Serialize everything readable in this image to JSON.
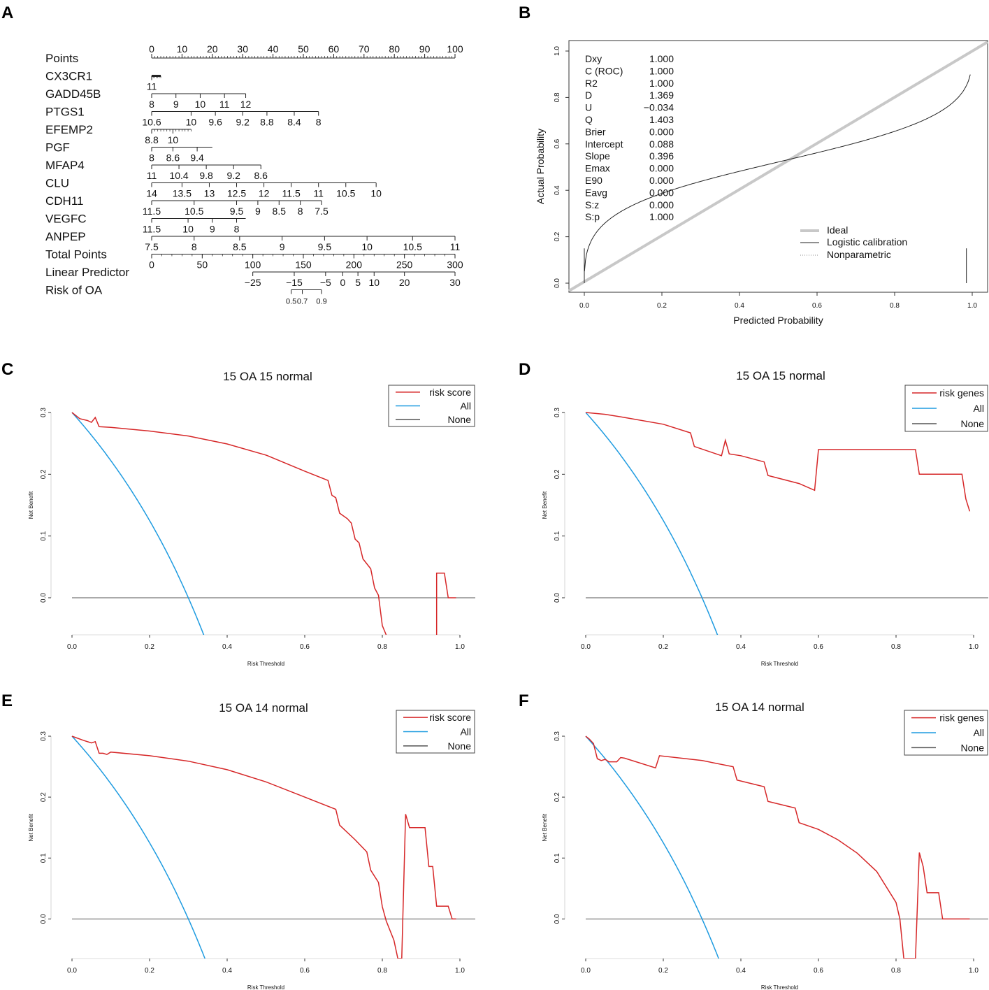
{
  "panel_labels": [
    "A",
    "B",
    "C",
    "D",
    "E",
    "F"
  ],
  "colors": {
    "model": "#d62728",
    "all": "#1e9be0",
    "none": "#555555",
    "ideal": "#c8c8c8",
    "axis": "#333333"
  },
  "chart_data": [
    {
      "type": "nomogram",
      "panel": "A",
      "rows": [
        {
          "label": "Points",
          "values": [
            0,
            100
          ],
          "ticks": [
            [
              "0",
              0
            ],
            [
              "10",
              10
            ],
            [
              "20",
              20
            ],
            [
              "30",
              30
            ],
            [
              "40",
              40
            ],
            [
              "50",
              50
            ],
            [
              "60",
              60
            ],
            [
              "70",
              70
            ],
            [
              "80",
              80
            ],
            [
              "90",
              90
            ],
            [
              "100",
              100
            ]
          ],
          "minor": 1
        },
        {
          "label": "CX3CR1",
          "values": [
            0,
            3
          ],
          "ticks": [
            [
              "11",
              0
            ]
          ],
          "minor": 0.5,
          "thick": true
        },
        {
          "label": "GADD45B",
          "values": [
            0,
            31
          ],
          "ticks": [
            [
              "8",
              0
            ],
            [
              "9",
              8
            ],
            [
              "10",
              16
            ],
            [
              "11",
              24
            ],
            [
              "12",
              31
            ]
          ]
        },
        {
          "label": "PTGS1",
          "values": [
            0,
            55
          ],
          "ticks": [
            [
              "10.6",
              0
            ],
            [
              "10",
              13
            ],
            [
              "9.6",
              21
            ],
            [
              "9.2",
              30
            ],
            [
              "8.8",
              38
            ],
            [
              "8.4",
              47
            ],
            [
              "8",
              55
            ]
          ]
        },
        {
          "label": "EFEMP2",
          "values": [
            0,
            13
          ],
          "ticks": [
            [
              "8.8",
              0
            ],
            [
              "10",
              7
            ]
          ],
          "minor": 1
        },
        {
          "label": "PGF",
          "values": [
            0,
            20
          ],
          "ticks": [
            [
              "8",
              0
            ],
            [
              "8.6",
              7
            ],
            [
              "9.4",
              15
            ]
          ]
        },
        {
          "label": "MFAP4",
          "values": [
            0,
            36
          ],
          "ticks": [
            [
              "11",
              0
            ],
            [
              "10.4",
              9
            ],
            [
              "9.8",
              18
            ],
            [
              "9.2",
              27
            ],
            [
              "8.6",
              36
            ]
          ]
        },
        {
          "label": "CLU",
          "values": [
            0,
            74
          ],
          "ticks": [
            [
              "14",
              0
            ],
            [
              "13.5",
              10
            ],
            [
              "13",
              19
            ],
            [
              "12.5",
              28
            ],
            [
              "12",
              37
            ],
            [
              "11.5",
              46
            ],
            [
              "11",
              55
            ],
            [
              "10.5",
              64
            ],
            [
              "10",
              74
            ]
          ]
        },
        {
          "label": "CDH11",
          "values": [
            0,
            56
          ],
          "ticks": [
            [
              "11.5",
              0
            ],
            [
              "10.5",
              14
            ],
            [
              "9.5",
              28
            ],
            [
              "9",
              35
            ],
            [
              "8.5",
              42
            ],
            [
              "8",
              49
            ],
            [
              "7.5",
              56
            ]
          ]
        },
        {
          "label": "VEGFC",
          "values": [
            0,
            31
          ],
          "ticks": [
            [
              "11.5",
              0
            ],
            [
              "10",
              12
            ],
            [
              "9",
              20
            ],
            [
              "8",
              28
            ]
          ]
        },
        {
          "label": "ANPEP",
          "values": [
            0,
            100
          ],
          "ticks": [
            [
              "7.5",
              0
            ],
            [
              "8",
              14
            ],
            [
              "8.5",
              29
            ],
            [
              "9",
              43
            ],
            [
              "9.5",
              57
            ],
            [
              "10",
              71
            ],
            [
              "10.5",
              86
            ],
            [
              "11",
              100
            ]
          ]
        },
        {
          "label": "Total Points",
          "values": [
            0,
            300
          ],
          "ticks": [
            [
              "0",
              0
            ],
            [
              "50",
              50
            ],
            [
              "100",
              100
            ],
            [
              "150",
              150
            ],
            [
              "200",
              200
            ],
            [
              "250",
              250
            ],
            [
              "300",
              300
            ]
          ],
          "minor": 10
        },
        {
          "label": "Linear Predictor",
          "values": [
            100,
            300
          ],
          "ticks": [
            [
              "−25",
              100
            ],
            [
              "−15",
              141
            ],
            [
              "−5",
              172
            ],
            [
              "0",
              189
            ],
            [
              "5",
              204
            ],
            [
              "10",
              220
            ],
            [
              "20",
              250
            ],
            [
              "30",
              300
            ]
          ]
        },
        {
          "label": "Risk of OA",
          "values": [
            138,
            168
          ],
          "ticks": [
            [
              "0.5",
              138
            ],
            [
              "0.7",
              149
            ],
            [
              "0.9",
              168
            ]
          ],
          "small": true
        }
      ]
    },
    {
      "type": "line",
      "panel": "B",
      "xlabel": "Predicted Probability",
      "ylabel": "Actual Probability",
      "xlim": [
        0,
        1
      ],
      "ylim": [
        0,
        1
      ],
      "xticks": [
        "0.0",
        "0.2",
        "0.4",
        "0.6",
        "0.8",
        "1.0"
      ],
      "yticks": [
        "0.0",
        "0.2",
        "0.4",
        "0.6",
        "0.8",
        "1.0"
      ],
      "stats": [
        [
          "Dxy",
          "1.000"
        ],
        [
          "C (ROC)",
          "1.000"
        ],
        [
          "R2",
          "1.000"
        ],
        [
          "D",
          "1.369"
        ],
        [
          "U",
          "−0.034"
        ],
        [
          "Q",
          "1.403"
        ],
        [
          "Brier",
          "0.000"
        ],
        [
          "Intercept",
          "0.088"
        ],
        [
          "Slope",
          "0.396"
        ],
        [
          "Emax",
          "0.000"
        ],
        [
          "E90",
          "0.000"
        ],
        [
          "Eavg",
          "0.000"
        ],
        [
          "S:z",
          "0.000"
        ],
        [
          "S:p",
          "1.000"
        ]
      ],
      "legend": [
        "Ideal",
        "Logistic calibration",
        "Nonparametric"
      ],
      "calibration_logit": {
        "intercept": 0.088,
        "slope": 0.396,
        "x": [
          0.0005,
          0.995
        ]
      }
    },
    {
      "type": "line",
      "panel": "C",
      "title": "15 OA    15 normal",
      "xlabel": "Risk Threshold",
      "ylabel": "Net Benefit",
      "xlim": [
        0,
        1
      ],
      "ylim": [
        -0.06,
        0.3
      ],
      "xticks": [
        "0.0",
        "0.2",
        "0.4",
        "0.6",
        "0.8",
        "1.0"
      ],
      "yticks": [
        "0.0",
        "0.1",
        "0.2",
        "0.3"
      ],
      "legend": [
        "risk score",
        "All",
        "None"
      ],
      "prevalence": 0.3,
      "model": [
        [
          0,
          0.3
        ],
        [
          0.02,
          0.29
        ],
        [
          0.04,
          0.287
        ],
        [
          0.05,
          0.284
        ],
        [
          0.06,
          0.292
        ],
        [
          0.07,
          0.277
        ],
        [
          0.1,
          0.276
        ],
        [
          0.2,
          0.27
        ],
        [
          0.3,
          0.262
        ],
        [
          0.4,
          0.249
        ],
        [
          0.5,
          0.231
        ],
        [
          0.6,
          0.205
        ],
        [
          0.66,
          0.19
        ],
        [
          0.67,
          0.166
        ],
        [
          0.68,
          0.162
        ],
        [
          0.69,
          0.137
        ],
        [
          0.71,
          0.128
        ],
        [
          0.72,
          0.121
        ],
        [
          0.73,
          0.095
        ],
        [
          0.74,
          0.089
        ],
        [
          0.75,
          0.063
        ],
        [
          0.77,
          0.047
        ],
        [
          0.78,
          0.016
        ],
        [
          0.79,
          0.004
        ],
        [
          0.8,
          -0.045
        ],
        [
          0.81,
          -0.06
        ]
      ],
      "model_tail": [
        [
          0.94,
          -0.06
        ],
        [
          0.94,
          0.04
        ],
        [
          0.96,
          0.04
        ],
        [
          0.97,
          0.0
        ],
        [
          0.99,
          0.0
        ]
      ]
    },
    {
      "type": "line",
      "panel": "D",
      "title": "15 OA    15 normal",
      "xlabel": "Risk Threshold",
      "ylabel": "Net Benefit",
      "xlim": [
        0,
        1
      ],
      "ylim": [
        -0.06,
        0.3
      ],
      "xticks": [
        "0.0",
        "0.2",
        "0.4",
        "0.6",
        "0.8",
        "1.0"
      ],
      "yticks": [
        "0.0",
        "0.1",
        "0.2",
        "0.3"
      ],
      "legend": [
        "risk genes",
        "All",
        "None"
      ],
      "prevalence": 0.3,
      "model": [
        [
          0,
          0.3
        ],
        [
          0.05,
          0.297
        ],
        [
          0.1,
          0.292
        ],
        [
          0.2,
          0.281
        ],
        [
          0.27,
          0.267
        ],
        [
          0.28,
          0.245
        ],
        [
          0.35,
          0.23
        ],
        [
          0.36,
          0.255
        ],
        [
          0.37,
          0.233
        ],
        [
          0.4,
          0.23
        ],
        [
          0.46,
          0.22
        ],
        [
          0.47,
          0.198
        ],
        [
          0.55,
          0.185
        ],
        [
          0.59,
          0.174
        ],
        [
          0.6,
          0.24
        ],
        [
          0.85,
          0.24
        ],
        [
          0.86,
          0.2
        ],
        [
          0.97,
          0.2
        ],
        [
          0.98,
          0.16
        ],
        [
          0.99,
          0.14
        ]
      ]
    },
    {
      "type": "line",
      "panel": "E",
      "title": "15 OA    14 normal",
      "xlabel": "Risk Threshold",
      "ylabel": "Net Benefit",
      "xlim": [
        0,
        1
      ],
      "ylim": [
        -0.065,
        0.3
      ],
      "xticks": [
        "0.0",
        "0.2",
        "0.4",
        "0.6",
        "0.8",
        "1.0"
      ],
      "yticks": [
        "0.0",
        "0.1",
        "0.2",
        "0.3"
      ],
      "legend": [
        "risk score",
        "All",
        "None"
      ],
      "prevalence": 0.3,
      "model": [
        [
          0,
          0.3
        ],
        [
          0.03,
          0.293
        ],
        [
          0.05,
          0.289
        ],
        [
          0.06,
          0.291
        ],
        [
          0.07,
          0.272
        ],
        [
          0.08,
          0.272
        ],
        [
          0.09,
          0.27
        ],
        [
          0.1,
          0.274
        ],
        [
          0.2,
          0.268
        ],
        [
          0.3,
          0.259
        ],
        [
          0.4,
          0.245
        ],
        [
          0.5,
          0.225
        ],
        [
          0.6,
          0.2
        ],
        [
          0.68,
          0.18
        ],
        [
          0.69,
          0.154
        ],
        [
          0.73,
          0.13
        ],
        [
          0.76,
          0.11
        ],
        [
          0.77,
          0.08
        ],
        [
          0.79,
          0.06
        ],
        [
          0.8,
          0.02
        ],
        [
          0.81,
          -0.003
        ],
        [
          0.83,
          -0.035
        ],
        [
          0.84,
          -0.065
        ],
        [
          0.85,
          -0.065
        ],
        [
          0.86,
          0.172
        ],
        [
          0.87,
          0.15
        ],
        [
          0.91,
          0.15
        ],
        [
          0.92,
          0.086
        ],
        [
          0.93,
          0.086
        ],
        [
          0.94,
          0.021
        ],
        [
          0.97,
          0.021
        ],
        [
          0.98,
          0.0
        ],
        [
          0.99,
          0.0
        ]
      ]
    },
    {
      "type": "line",
      "panel": "F",
      "title": "15 OA    14 normal",
      "xlabel": "Risk Threshold",
      "ylabel": "Net Benefit",
      "xlim": [
        0,
        1
      ],
      "ylim": [
        -0.065,
        0.3
      ],
      "xticks": [
        "0.0",
        "0.2",
        "0.4",
        "0.6",
        "0.8",
        "1.0"
      ],
      "yticks": [
        "0.0",
        "0.1",
        "0.2",
        "0.3"
      ],
      "legend": [
        "risk genes",
        "All",
        "None"
      ],
      "prevalence": 0.3,
      "model": [
        [
          0,
          0.3
        ],
        [
          0.01,
          0.295
        ],
        [
          0.02,
          0.288
        ],
        [
          0.03,
          0.263
        ],
        [
          0.04,
          0.26
        ],
        [
          0.05,
          0.262
        ],
        [
          0.06,
          0.258
        ],
        [
          0.08,
          0.258
        ],
        [
          0.09,
          0.265
        ],
        [
          0.1,
          0.264
        ],
        [
          0.18,
          0.248
        ],
        [
          0.19,
          0.268
        ],
        [
          0.3,
          0.26
        ],
        [
          0.38,
          0.25
        ],
        [
          0.39,
          0.228
        ],
        [
          0.46,
          0.217
        ],
        [
          0.47,
          0.193
        ],
        [
          0.54,
          0.182
        ],
        [
          0.55,
          0.158
        ],
        [
          0.6,
          0.147
        ],
        [
          0.65,
          0.13
        ],
        [
          0.7,
          0.108
        ],
        [
          0.75,
          0.078
        ],
        [
          0.8,
          0.027
        ],
        [
          0.81,
          0.0
        ],
        [
          0.82,
          -0.065
        ],
        [
          0.85,
          -0.065
        ],
        [
          0.86,
          0.109
        ],
        [
          0.87,
          0.086
        ],
        [
          0.88,
          0.043
        ],
        [
          0.91,
          0.043
        ],
        [
          0.92,
          0.0
        ],
        [
          0.99,
          0.0
        ]
      ]
    }
  ]
}
